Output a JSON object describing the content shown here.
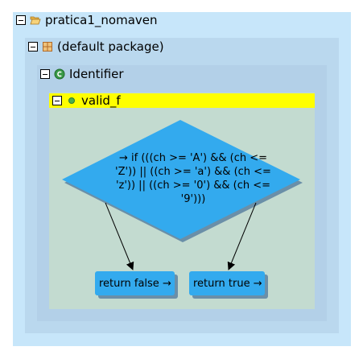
{
  "tree": {
    "project": {
      "label": "pratica1_nomaven",
      "icon": "folder-open-icon"
    },
    "package": {
      "label": "(default package)",
      "icon": "package-icon"
    },
    "class": {
      "label": "Identifier",
      "icon": "class-icon"
    },
    "method": {
      "label": "valid_f",
      "icon": "method-dot-icon"
    }
  },
  "flowchart": {
    "decision": {
      "text": "→ if (((ch >= 'A') && (ch <= 'Z')) || ((ch >= 'a') && (ch <= 'z')) || ((ch >= '0') && (ch <= '9')))"
    },
    "return_false": {
      "text": "return false →"
    },
    "return_true": {
      "text": "return true →"
    }
  },
  "colors": {
    "project_bg": "#c7e6fa",
    "package_bg": "#bad8ee",
    "class_bg": "#b3d0e8",
    "method_bg": "#c3dbd0",
    "method_header": "#ffff00",
    "shape_fill": "#33aaee",
    "shape_shadow": "#6a8fa8"
  }
}
